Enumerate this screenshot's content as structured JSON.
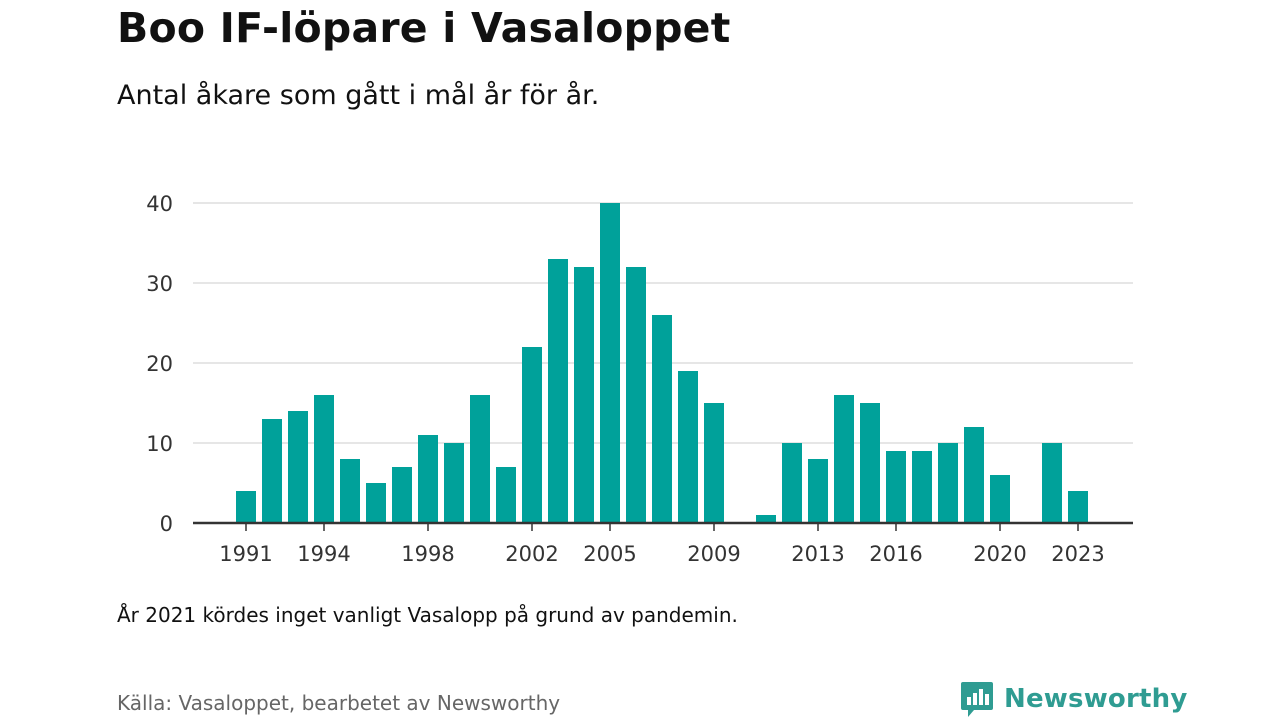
{
  "header": {
    "title": "Boo IF-löpare i Vasaloppet",
    "subtitle": "Antal åkare som gått i mål år för år."
  },
  "chart_data": {
    "type": "bar",
    "categories": [
      1991,
      1992,
      1993,
      1994,
      1995,
      1996,
      1997,
      1998,
      1999,
      2000,
      2001,
      2002,
      2003,
      2004,
      2005,
      2006,
      2007,
      2008,
      2009,
      2010,
      2011,
      2012,
      2013,
      2014,
      2015,
      2016,
      2017,
      2018,
      2019,
      2020,
      2021,
      2022,
      2023
    ],
    "values": [
      4,
      13,
      14,
      16,
      8,
      5,
      7,
      11,
      10,
      16,
      7,
      22,
      33,
      32,
      40,
      32,
      26,
      19,
      15,
      0,
      1,
      10,
      8,
      16,
      15,
      9,
      9,
      10,
      12,
      6,
      0,
      10,
      4
    ],
    "x_tick_labels": [
      "1991",
      "1994",
      "1998",
      "2002",
      "2005",
      "2009",
      "2013",
      "2016",
      "2020",
      "2023"
    ],
    "y_ticks": [
      0,
      10,
      20,
      30,
      40
    ],
    "ylim": [
      0,
      40
    ],
    "xlabel": "",
    "ylabel": "",
    "grid": true,
    "bar_color": "#00a19a"
  },
  "footer": {
    "note": "År 2021 kördes inget vanligt Vasalopp på grund av pandemin.",
    "source": "Källa: Vasaloppet, bearbetet av Newsworthy",
    "brand": "Newsworthy"
  },
  "colors": {
    "brand": "#2f9c92",
    "axis": "#333333",
    "grid": "#dddddd"
  },
  "icons": {
    "logo": "newsworthy-logo-icon"
  }
}
